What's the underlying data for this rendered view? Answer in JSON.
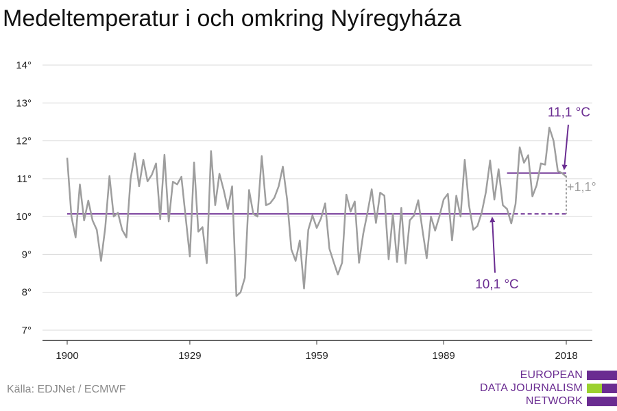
{
  "title": "Medeltemperatur i och omkring Nyíregyháza",
  "source": "Källa: EDJNet / ECMWF",
  "logo": {
    "lines": [
      "EUROPEAN",
      "DATA JOURNALISM",
      "NETWORK"
    ],
    "colors": {
      "purple": "#6a2c91",
      "green": "#9bd12f"
    }
  },
  "colors": {
    "series": "#9e9e9e",
    "reference": "#6a2c91",
    "grid": "#d9d9d9",
    "axis": "#333333",
    "delta": "#9e9e9e"
  },
  "chart_data": {
    "type": "line",
    "title": "Medeltemperatur i och omkring Nyíregyháza",
    "xlabel": "",
    "ylabel": "",
    "xlim": [
      1900,
      2018
    ],
    "ylim": [
      7,
      14
    ],
    "grid": true,
    "y_ticks": [
      7,
      8,
      9,
      10,
      11,
      12,
      13,
      14
    ],
    "y_tick_labels": [
      "7°",
      "8°",
      "9°",
      "10°",
      "11°",
      "12°",
      "13°",
      "14°"
    ],
    "x_ticks": [
      1900,
      1929,
      1959,
      1989,
      2018
    ],
    "x_tick_labels": [
      "1900",
      "1929",
      "1959",
      "1989",
      "2018"
    ],
    "series": [
      {
        "x": [
          1900,
          1901,
          1902,
          1903,
          1904,
          1905,
          1906,
          1907,
          1908,
          1909,
          1910,
          1911,
          1912,
          1913,
          1914,
          1915,
          1916,
          1917,
          1918,
          1919,
          1920,
          1921,
          1922,
          1923,
          1924,
          1925,
          1926,
          1927,
          1928,
          1929,
          1930,
          1931,
          1932,
          1933,
          1934,
          1935,
          1936,
          1937,
          1938,
          1939,
          1940,
          1941,
          1942,
          1943,
          1944,
          1945,
          1946,
          1947,
          1948,
          1949,
          1950,
          1951,
          1952,
          1953,
          1954,
          1955,
          1956,
          1957,
          1958,
          1959,
          1960,
          1961,
          1962,
          1963,
          1964,
          1965,
          1966,
          1967,
          1968,
          1969,
          1970,
          1971,
          1972,
          1973,
          1974,
          1975,
          1976,
          1977,
          1978,
          1979,
          1980,
          1981,
          1982,
          1983,
          1984,
          1985,
          1986,
          1987,
          1988,
          1989,
          1990,
          1991,
          1992,
          1993,
          1994,
          1995,
          1996,
          1997,
          1998,
          1999,
          2000,
          2001,
          2002,
          2003,
          2004,
          2005,
          2006,
          2007,
          2008,
          2009,
          2010,
          2011,
          2012,
          2013,
          2014,
          2015,
          2016,
          2017,
          2018
        ],
        "values": [
          11.55,
          10.0,
          9.45,
          10.85,
          9.9,
          10.42,
          9.9,
          9.65,
          8.83,
          9.7,
          11.07,
          10.0,
          10.1,
          9.65,
          9.45,
          11.0,
          11.67,
          10.8,
          11.5,
          10.93,
          11.1,
          11.4,
          9.93,
          11.63,
          9.87,
          10.92,
          10.85,
          11.05,
          10.0,
          8.95,
          11.43,
          9.6,
          9.72,
          8.77,
          11.73,
          10.3,
          11.13,
          10.7,
          10.2,
          10.8,
          7.9,
          8.0,
          8.38,
          10.7,
          10.07,
          10.0,
          11.6,
          10.3,
          10.35,
          10.5,
          10.8,
          11.32,
          10.45,
          9.13,
          8.83,
          9.37,
          8.1,
          9.65,
          10.03,
          9.7,
          9.95,
          10.35,
          9.15,
          8.8,
          8.47,
          8.78,
          10.58,
          10.13,
          10.4,
          8.78,
          9.55,
          10.1,
          10.72,
          9.83,
          10.63,
          10.55,
          8.87,
          10.07,
          8.8,
          10.23,
          8.76,
          9.9,
          10.03,
          10.43,
          9.65,
          8.9,
          10.0,
          9.63,
          10.0,
          10.45,
          10.6,
          9.37,
          10.55,
          10.0,
          11.5,
          10.3,
          9.65,
          9.75,
          10.1,
          10.65,
          11.48,
          10.45,
          11.25,
          10.3,
          10.2,
          9.82,
          10.33,
          11.83,
          11.42,
          11.62,
          10.53,
          10.83,
          11.4,
          11.37,
          12.35,
          12.0,
          11.2,
          11.15,
          11.05
        ]
      }
    ],
    "reference_line": {
      "label": "10,1 °C",
      "value": 10.07,
      "from": 1900,
      "to": 2018
    },
    "recent_line": {
      "label": "11,1 °C",
      "value": 11.15,
      "from": 2004,
      "to": 2018
    },
    "delta_label": "+1,1°"
  }
}
